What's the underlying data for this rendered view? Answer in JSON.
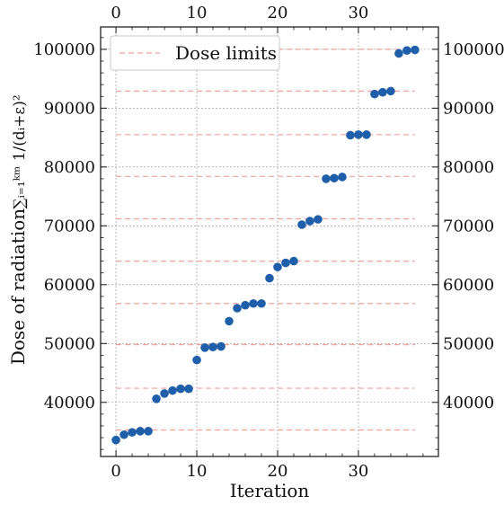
{
  "chart_data": {
    "type": "scatter",
    "xlabel": "Iteration",
    "ylabel_text": "Dose of radiation",
    "ylabel_formula": "∑ᵢ₌₁ᵏᵐ 1/(dᵢ+ε)²",
    "xlim": [
      -1.9,
      39.9
    ],
    "ylim": [
      30800,
      103800
    ],
    "xticks": [
      0,
      10,
      20,
      30
    ],
    "xtick_labels": [
      "0",
      "10",
      "20",
      "30"
    ],
    "yticks": [
      40000,
      50000,
      60000,
      70000,
      80000,
      90000,
      100000
    ],
    "ytick_labels": [
      "40000",
      "50000",
      "60000",
      "70000",
      "80000",
      "90000",
      "100000"
    ],
    "x_minor_step": 2,
    "y_minor_step": 2000,
    "grid": true,
    "legend": {
      "position": "top-left",
      "label": "Dose limits"
    },
    "dose_limits": {
      "x_range": [
        0,
        37
      ],
      "values": [
        35300,
        42400,
        49800,
        56800,
        64000,
        71200,
        78400,
        85500,
        92900,
        100000
      ]
    },
    "points": {
      "x": [
        0,
        1,
        2,
        3,
        4,
        5,
        6,
        7,
        8,
        9,
        10,
        11,
        12,
        13,
        14,
        15,
        16,
        17,
        18,
        19,
        20,
        21,
        22,
        23,
        24,
        25,
        26,
        27,
        28,
        29,
        30,
        31,
        32,
        33,
        34,
        35,
        36,
        37
      ],
      "y": [
        33600,
        34500,
        34900,
        35100,
        35100,
        40600,
        41500,
        42000,
        42300,
        42300,
        47200,
        49300,
        49400,
        49500,
        53800,
        56000,
        56500,
        56800,
        56800,
        61100,
        63000,
        63700,
        64000,
        70200,
        70800,
        71100,
        78000,
        78100,
        78300,
        85400,
        85500,
        85500,
        92400,
        92700,
        92900,
        99300,
        99800,
        99900
      ]
    },
    "colors": {
      "points": "#1f5ea8",
      "limit_lines": "#f4a19a",
      "grid": "#8a8a8a"
    }
  }
}
